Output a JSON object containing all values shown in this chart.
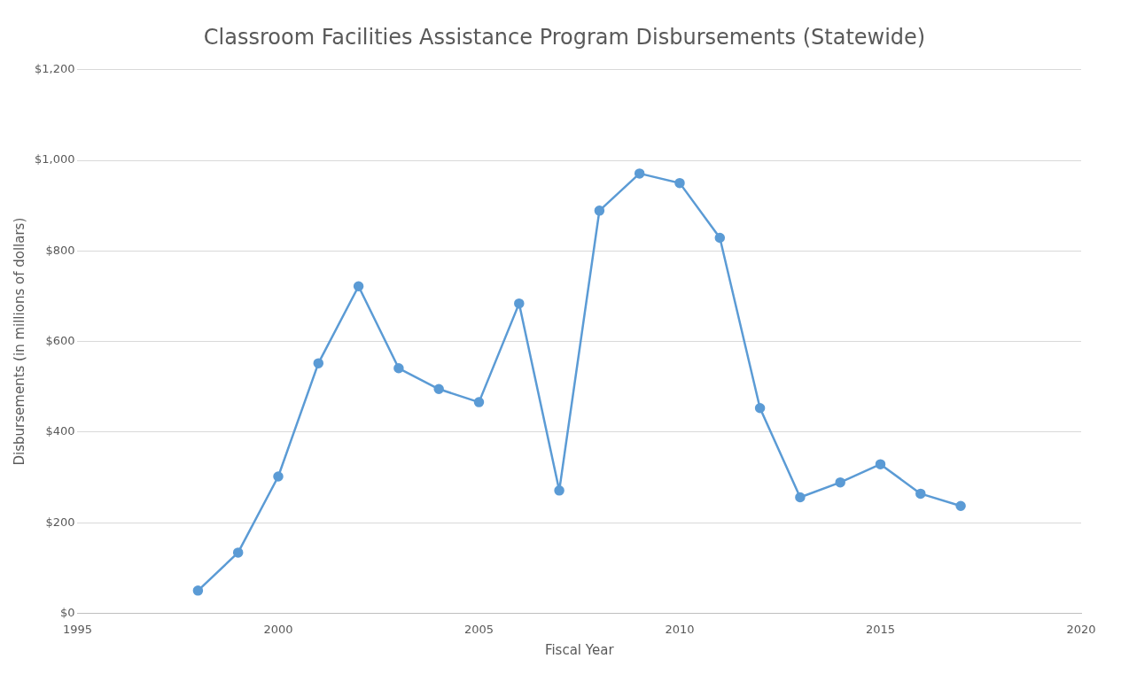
{
  "chart_data": {
    "type": "line",
    "title": "Classroom Facilities Assistance Program Disbursements (Statewide)",
    "xlabel": "Fiscal Year",
    "ylabel": "Disbursements (in millions of dollars)",
    "x": [
      1998,
      1999,
      2000,
      2001,
      2002,
      2003,
      2004,
      2005,
      2006,
      2007,
      2008,
      2009,
      2010,
      2011,
      2012,
      2013,
      2014,
      2015,
      2016,
      2017
    ],
    "series": [
      {
        "color": "#5b9bd5",
        "values": [
          50,
          134,
          302,
          552,
          722,
          541,
          495,
          466,
          684,
          271,
          889,
          971,
          950,
          829,
          453,
          256,
          289,
          329,
          264,
          237
        ]
      }
    ],
    "xlim": [
      1995,
      2020
    ],
    "xticks": [
      1995,
      2000,
      2005,
      2010,
      2015,
      2020
    ],
    "ylim": [
      0,
      1200
    ],
    "yticks": [
      {
        "value": 0,
        "label": "$0"
      },
      {
        "value": 200,
        "label": "$200"
      },
      {
        "value": 400,
        "label": "$400"
      },
      {
        "value": 600,
        "label": "$600"
      },
      {
        "value": 800,
        "label": "$800"
      },
      {
        "value": 1000,
        "label": "$1,000"
      },
      {
        "value": 1200,
        "label": "$1,200"
      }
    ],
    "grid": "y",
    "legend": false,
    "marker": "circle",
    "line_style": "solid"
  }
}
